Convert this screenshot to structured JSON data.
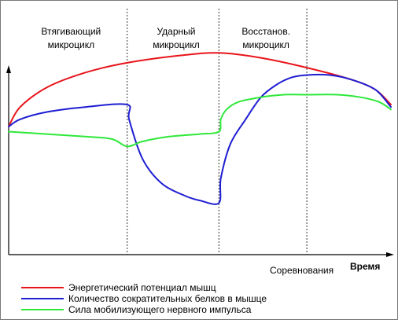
{
  "chart_data": {
    "type": "line",
    "title": "",
    "xlabel": "Время",
    "ylabel": "",
    "xlim": [
      0,
      100
    ],
    "ylim": [
      0,
      100
    ],
    "grid": false,
    "legend_position": "bottom-left",
    "phases": [
      {
        "label_line1": "Втягивающий",
        "label_line2": "микроцикл",
        "x_end": 31
      },
      {
        "label_line1": "Ударный",
        "label_line2": "микроцикл",
        "x_end": 55
      },
      {
        "label_line1": "Восстанов.",
        "label_line2": "микроцикл",
        "x_end": 78
      }
    ],
    "annotation": "Соревнования",
    "series": [
      {
        "name": "Энергетический потенциал мышц",
        "color": "#e8141b",
        "points": [
          [
            0,
            52
          ],
          [
            3,
            60
          ],
          [
            10,
            68
          ],
          [
            20,
            74
          ],
          [
            31,
            78
          ],
          [
            45,
            81
          ],
          [
            55,
            82
          ],
          [
            66,
            80
          ],
          [
            78,
            76
          ],
          [
            90,
            71
          ],
          [
            96,
            67
          ],
          [
            100,
            61
          ]
        ]
      },
      {
        "name": "Количество сократительных белков в мышце",
        "color": "#1e1ed2",
        "points": [
          [
            0,
            52
          ],
          [
            3,
            55
          ],
          [
            10,
            58
          ],
          [
            20,
            60
          ],
          [
            31,
            61
          ],
          [
            31.5,
            55
          ],
          [
            35,
            39
          ],
          [
            40,
            29
          ],
          [
            46,
            24
          ],
          [
            50,
            22
          ],
          [
            55,
            21
          ],
          [
            55.5,
            31
          ],
          [
            58,
            45
          ],
          [
            62,
            55
          ],
          [
            66,
            64
          ],
          [
            70,
            69
          ],
          [
            74,
            72
          ],
          [
            78,
            73
          ],
          [
            84,
            73
          ],
          [
            90,
            71
          ],
          [
            96,
            67
          ],
          [
            100,
            60
          ]
        ]
      },
      {
        "name": "Сила мобилизующего нервного импульса",
        "color": "#2ee83a",
        "points": [
          [
            0,
            50
          ],
          [
            10,
            49
          ],
          [
            20,
            48
          ],
          [
            27,
            47
          ],
          [
            31,
            44
          ],
          [
            35,
            46
          ],
          [
            42,
            48
          ],
          [
            50,
            49
          ],
          [
            55,
            50
          ],
          [
            55.5,
            55
          ],
          [
            57,
            59
          ],
          [
            60,
            62
          ],
          [
            66,
            64
          ],
          [
            72,
            65
          ],
          [
            78,
            65
          ],
          [
            86,
            65
          ],
          [
            92,
            64
          ],
          [
            97,
            62
          ],
          [
            100,
            59
          ]
        ]
      }
    ]
  }
}
